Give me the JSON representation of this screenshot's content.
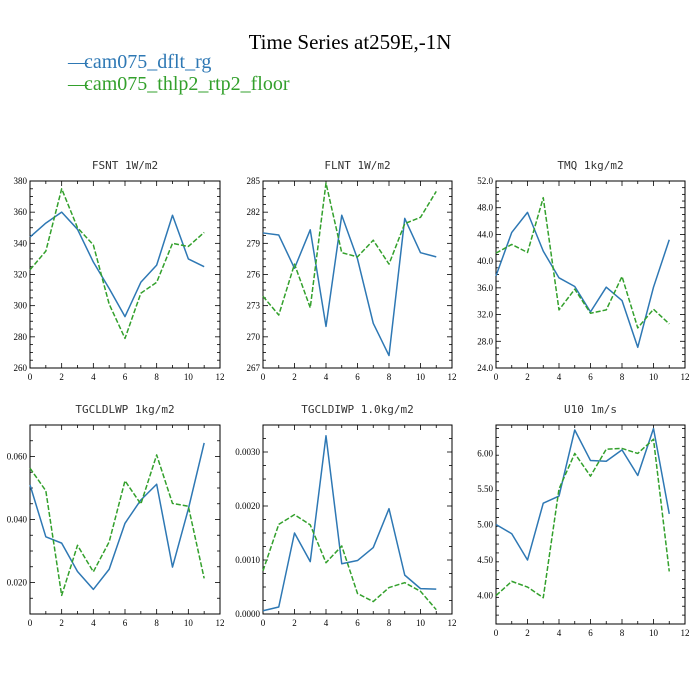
{
  "title": "Time Series at259E,-1N",
  "legend": [
    {
      "name": "cam075_dflt_rg",
      "color": "#2e78b4",
      "style": "solid"
    },
    {
      "name": "cam075_thlp2_rtp2_floor",
      "color": "#33a02c",
      "style": "dashed"
    }
  ],
  "chart_data": [
    {
      "type": "line",
      "title": "FSNT",
      "units": "1W/m2",
      "x": [
        0,
        1,
        2,
        3,
        4,
        5,
        6,
        7,
        8,
        9,
        10,
        11
      ],
      "xlim": [
        0,
        12
      ],
      "xticks": [
        0,
        2,
        4,
        6,
        8,
        10,
        12
      ],
      "ylim": [
        260,
        380
      ],
      "yticks": [
        260,
        280,
        300,
        320,
        340,
        360,
        380
      ],
      "ytick_labels": [
        "260",
        "280",
        "300",
        "320",
        "340",
        "360",
        "380"
      ],
      "series": [
        {
          "name": "cam075_dflt_rg",
          "values": [
            344,
            353,
            360,
            349,
            328,
            311,
            293,
            315,
            326,
            358,
            330,
            325
          ]
        },
        {
          "name": "cam075_thlp2_rtp2_floor",
          "values": [
            323,
            335,
            375,
            350,
            339,
            301,
            279,
            308,
            315,
            340,
            338,
            347
          ]
        }
      ]
    },
    {
      "type": "line",
      "title": "FLNT",
      "units": "1W/m2",
      "x": [
        0,
        1,
        2,
        3,
        4,
        5,
        6,
        7,
        8,
        9,
        10,
        11
      ],
      "xlim": [
        0,
        12
      ],
      "xticks": [
        0,
        2,
        4,
        6,
        8,
        10,
        12
      ],
      "ylim": [
        267,
        285
      ],
      "yticks": [
        267,
        270,
        273,
        276,
        279,
        282,
        285
      ],
      "ytick_labels": [
        "267",
        "270",
        "273",
        "276",
        "279",
        "282",
        "285"
      ],
      "series": [
        {
          "name": "cam075_dflt_rg",
          "values": [
            280.0,
            279.8,
            276.6,
            280.3,
            271.0,
            281.7,
            277.5,
            271.3,
            268.2,
            281.4,
            278.1,
            277.7
          ]
        },
        {
          "name": "cam075_thlp2_rtp2_floor",
          "values": [
            273.9,
            272.1,
            277.0,
            272.8,
            284.8,
            278.1,
            277.7,
            279.3,
            277.0,
            280.9,
            281.5,
            284.0
          ]
        }
      ]
    },
    {
      "type": "line",
      "title": "TMQ",
      "units": "1kg/m2",
      "x": [
        0,
        1,
        2,
        3,
        4,
        5,
        6,
        7,
        8,
        9,
        10,
        11
      ],
      "xlim": [
        0,
        12
      ],
      "xticks": [
        0,
        2,
        4,
        6,
        8,
        10,
        12
      ],
      "ylim": [
        24,
        52
      ],
      "yticks": [
        24,
        28,
        32,
        36,
        40,
        44,
        48,
        52
      ],
      "ytick_labels": [
        "24.0",
        "28.0",
        "32.0",
        "36.0",
        "40.0",
        "44.0",
        "48.0",
        "52.0"
      ],
      "series": [
        {
          "name": "cam075_dflt_rg",
          "values": [
            37.8,
            44.3,
            47.3,
            41.5,
            37.5,
            36.2,
            32.4,
            36.1,
            34.1,
            27.1,
            36.1,
            43.2
          ]
        },
        {
          "name": "cam075_thlp2_rtp2_floor",
          "values": [
            41.2,
            42.5,
            41.3,
            49.5,
            32.7,
            35.8,
            32.2,
            32.7,
            37.7,
            30.0,
            32.8,
            30.6
          ]
        }
      ]
    },
    {
      "type": "line",
      "title": "TGCLDLWP",
      "units": "1kg/m2",
      "x": [
        0,
        1,
        2,
        3,
        4,
        5,
        6,
        7,
        8,
        9,
        10,
        11
      ],
      "xlim": [
        0,
        12
      ],
      "xticks": [
        0,
        2,
        4,
        6,
        8,
        10,
        12
      ],
      "ylim": [
        0.01,
        0.07
      ],
      "yticks": [
        0.02,
        0.04,
        0.06
      ],
      "ytick_labels": [
        "0.020",
        "0.040",
        "0.060"
      ],
      "series": [
        {
          "name": "cam075_dflt_rg",
          "values": [
            0.051,
            0.0345,
            0.0325,
            0.0235,
            0.0178,
            0.0242,
            0.0388,
            0.0462,
            0.0512,
            0.0249,
            0.0433,
            0.0643
          ]
        },
        {
          "name": "cam075_thlp2_rtp2_floor",
          "values": [
            0.0563,
            0.0491,
            0.0159,
            0.0318,
            0.0234,
            0.0329,
            0.0523,
            0.0449,
            0.0605,
            0.0451,
            0.0442,
            0.0213
          ]
        }
      ]
    },
    {
      "type": "line",
      "title": "TGCLDIWP",
      "units": "1.0kg/m2",
      "x": [
        0,
        1,
        2,
        3,
        4,
        5,
        6,
        7,
        8,
        9,
        10,
        11
      ],
      "xlim": [
        0,
        12
      ],
      "xticks": [
        0,
        2,
        4,
        6,
        8,
        10,
        12
      ],
      "ylim": [
        0,
        0.0035
      ],
      "yticks": [
        0,
        0.001,
        0.002,
        0.003
      ],
      "ytick_labels": [
        "0.0000",
        "0.0010",
        "0.0020",
        "0.0030"
      ],
      "series": [
        {
          "name": "cam075_dflt_rg",
          "values": [
            6e-05,
            0.00013,
            0.0015,
            0.00097,
            0.0033,
            0.00093,
            0.00099,
            0.00123,
            0.00195,
            0.00072,
            0.00047,
            0.00046
          ]
        },
        {
          "name": "cam075_thlp2_rtp2_floor",
          "values": [
            0.0008,
            0.00166,
            0.00184,
            0.00165,
            0.00095,
            0.00126,
            0.00038,
            0.00023,
            0.00049,
            0.00058,
            0.00042,
            8e-05
          ]
        }
      ]
    },
    {
      "type": "line",
      "title": "U10",
      "units": "1m/s",
      "x": [
        0,
        1,
        2,
        3,
        4,
        5,
        6,
        7,
        8,
        9,
        10,
        11
      ],
      "xlim": [
        0,
        12
      ],
      "xticks": [
        0,
        2,
        4,
        6,
        8,
        10,
        12
      ],
      "ylim": [
        3.6,
        6.4
      ],
      "yticks": [
        4.0,
        4.5,
        5.0,
        5.5,
        6.0
      ],
      "ytick_labels": [
        "4.00",
        "4.50",
        "5.00",
        "5.50",
        "6.00"
      ],
      "series": [
        {
          "name": "cam075_dflt_rg",
          "values": [
            5.0,
            4.87,
            4.5,
            5.3,
            5.4,
            6.33,
            5.9,
            5.89,
            6.05,
            5.69,
            6.35,
            5.15
          ]
        },
        {
          "name": "cam075_thlp2_rtp2_floor",
          "values": [
            4.0,
            4.2,
            4.12,
            3.97,
            5.5,
            6.0,
            5.68,
            6.06,
            6.07,
            6.0,
            6.2,
            4.34
          ]
        }
      ]
    }
  ]
}
